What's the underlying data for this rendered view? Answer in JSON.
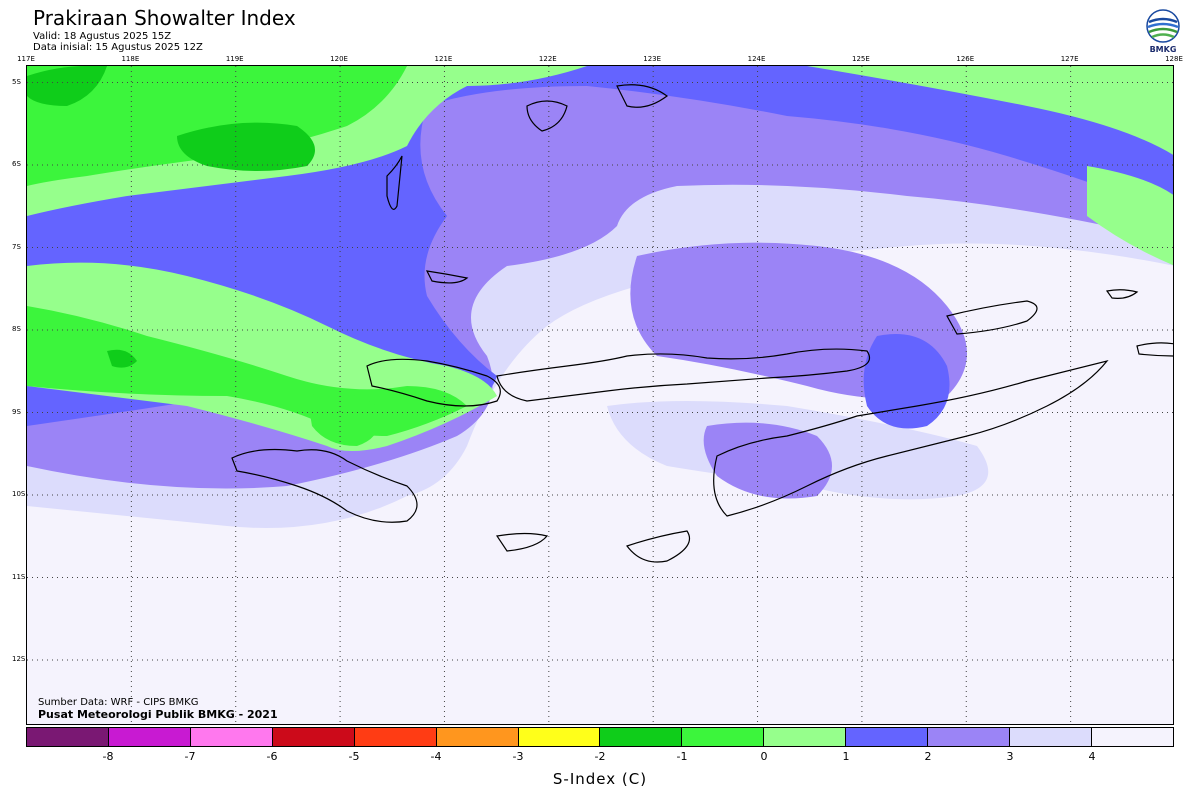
{
  "header": {
    "title": "Prakiraan Showalter Index",
    "valid": "Valid: 18 Agustus 2025 15Z",
    "initial": "Data inisial: 15 Agustus 2025 12Z"
  },
  "logo": {
    "text": "BMKG",
    "icon": "bmkg-logo-icon"
  },
  "map": {
    "lon_labels": [
      "117E",
      "118E",
      "119E",
      "120E",
      "121E",
      "122E",
      "123E",
      "124E",
      "125E",
      "126E",
      "127E",
      "128E"
    ],
    "lat_labels": [
      "5S",
      "6S",
      "7S",
      "8S",
      "9S",
      "10S",
      "11S",
      "12S"
    ],
    "lon_range": [
      117,
      128
    ],
    "lat_range": [
      -4.8,
      -12.8
    ],
    "grid": "dotted"
  },
  "footer": {
    "source": "Sumber Data: WRF - CIPS BMKG",
    "org": "Pusat Meteorologi Publik BMKG - 2021"
  },
  "colorbar": {
    "colors": [
      "#7a1873",
      "#c81ad2",
      "#ff78ee",
      "#cc0a1a",
      "#ff3c14",
      "#ff961e",
      "#ffff1a",
      "#0fcd1a",
      "#3cf53c",
      "#96ff8c",
      "#6464ff",
      "#9b84f6",
      "#dcdcfc",
      "#f5f3fd"
    ],
    "ticks": [
      "-8",
      "-7",
      "-6",
      "-5",
      "-4",
      "-3",
      "-2",
      "-1",
      "0",
      "1",
      "2",
      "3",
      "4"
    ],
    "label": "S-Index (C)"
  }
}
